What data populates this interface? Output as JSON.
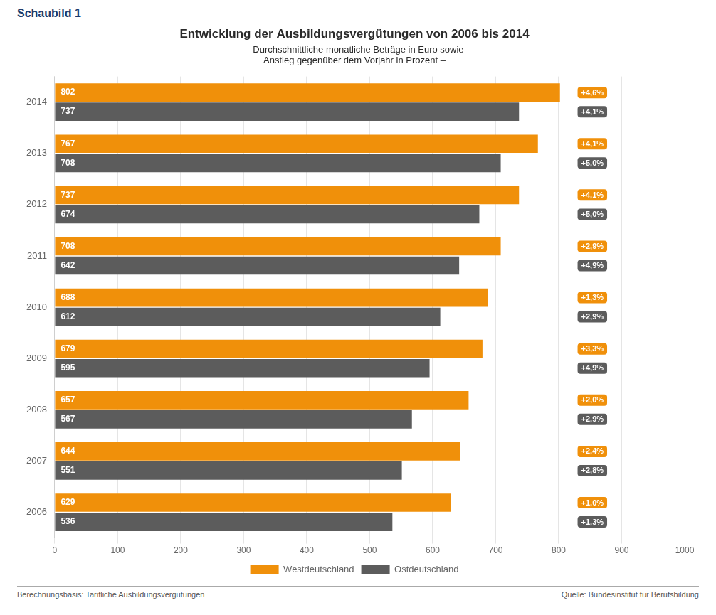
{
  "chart_data": {
    "type": "bar",
    "orientation": "horizontal",
    "title": "Entwicklung der Ausbildungsvergütungen von 2006 bis 2014",
    "subtitle": "– Durchschnittliche monatliche Beträge in Euro sowie\nAnstieg gegenüber dem Vorjahr in Prozent –",
    "annotations": [
      "Schaubild 1",
      "Berechnungsbasis: Tarifliche Ausbildungsvergütungen",
      "Quelle: Bundesinstitut für Berufsbildung"
    ],
    "categories": [
      "2006",
      "2007",
      "2008",
      "2009",
      "2010",
      "2011",
      "2012",
      "2013",
      "2014"
    ],
    "series": [
      {
        "name": "Westdeutschland",
        "color": "#F0900A",
        "values": [
          629,
          644,
          657,
          679,
          688,
          708,
          737,
          767,
          802
        ],
        "pct_labels": [
          "+1,0%",
          "+2,4%",
          "+2,0%",
          "+3,3%",
          "+1,3%",
          "+2,9%",
          "+4,1%",
          "+4,1%",
          "+4,6%"
        ]
      },
      {
        "name": "Ostdeutschland",
        "color": "#5C5C5C",
        "values": [
          536,
          551,
          567,
          595,
          612,
          642,
          674,
          708,
          737
        ],
        "pct_labels": [
          "+1,3%",
          "+2,8%",
          "+2,9%",
          "+4,9%",
          "+2,9%",
          "+4,9%",
          "+5,0%",
          "+5,0%",
          "+4,1%"
        ]
      }
    ],
    "xlim": [
      0,
      1000
    ],
    "xticks": [
      0,
      100,
      200,
      300,
      400,
      500,
      600,
      700,
      800,
      900,
      1000
    ],
    "grid": true,
    "legend": "bottom",
    "data_labels": true
  }
}
